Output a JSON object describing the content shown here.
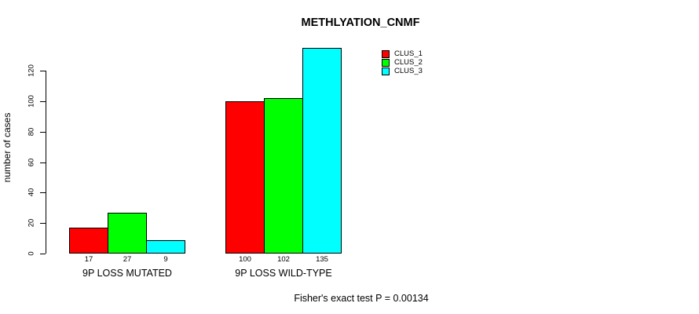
{
  "page": {
    "background": "#ffffff"
  },
  "chart_data": {
    "type": "bar",
    "title": "METHLYATION_CNMF",
    "ylabel": "number of cases",
    "xlabel": "",
    "categories": [
      "9P LOSS MUTATED",
      "9P LOSS WILD-TYPE"
    ],
    "series": [
      {
        "name": "CLUS_1",
        "color": "#ff0000",
        "values": [
          17,
          100
        ]
      },
      {
        "name": "CLUS_2",
        "color": "#00ff00",
        "values": [
          27,
          102
        ]
      },
      {
        "name": "CLUS_3",
        "color": "#00ffff",
        "values": [
          9,
          135
        ]
      }
    ],
    "bar_value_labels": [
      [
        17,
        27,
        9
      ],
      [
        100,
        102,
        135
      ]
    ],
    "yticks": [
      0,
      20,
      40,
      60,
      80,
      100,
      120
    ],
    "ylim": [
      0,
      135
    ],
    "grid": false,
    "axis_color": "#000000",
    "bar_border_color": "#000000",
    "legend_position": "top-right",
    "annotation": "Fisher's exact test P = 0.00134"
  }
}
